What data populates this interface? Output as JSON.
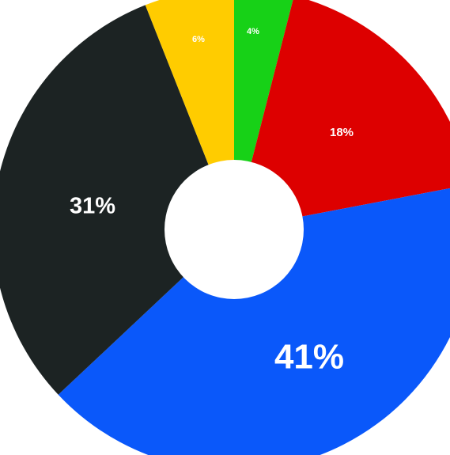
{
  "chart_data": {
    "type": "pie",
    "style": "donut",
    "slices": [
      {
        "value": 4,
        "label": "4%",
        "color": "#17d117"
      },
      {
        "value": 18,
        "label": "18%",
        "color": "#dd0000"
      },
      {
        "value": 41,
        "label": "41%",
        "color": "#0a58fa"
      },
      {
        "value": 31,
        "label": "31%",
        "color": "#1c2323"
      },
      {
        "value": 6,
        "label": "6%",
        "color": "#ffcc00"
      }
    ],
    "start_angle": "top",
    "direction": "clockwise",
    "legend": "none"
  }
}
